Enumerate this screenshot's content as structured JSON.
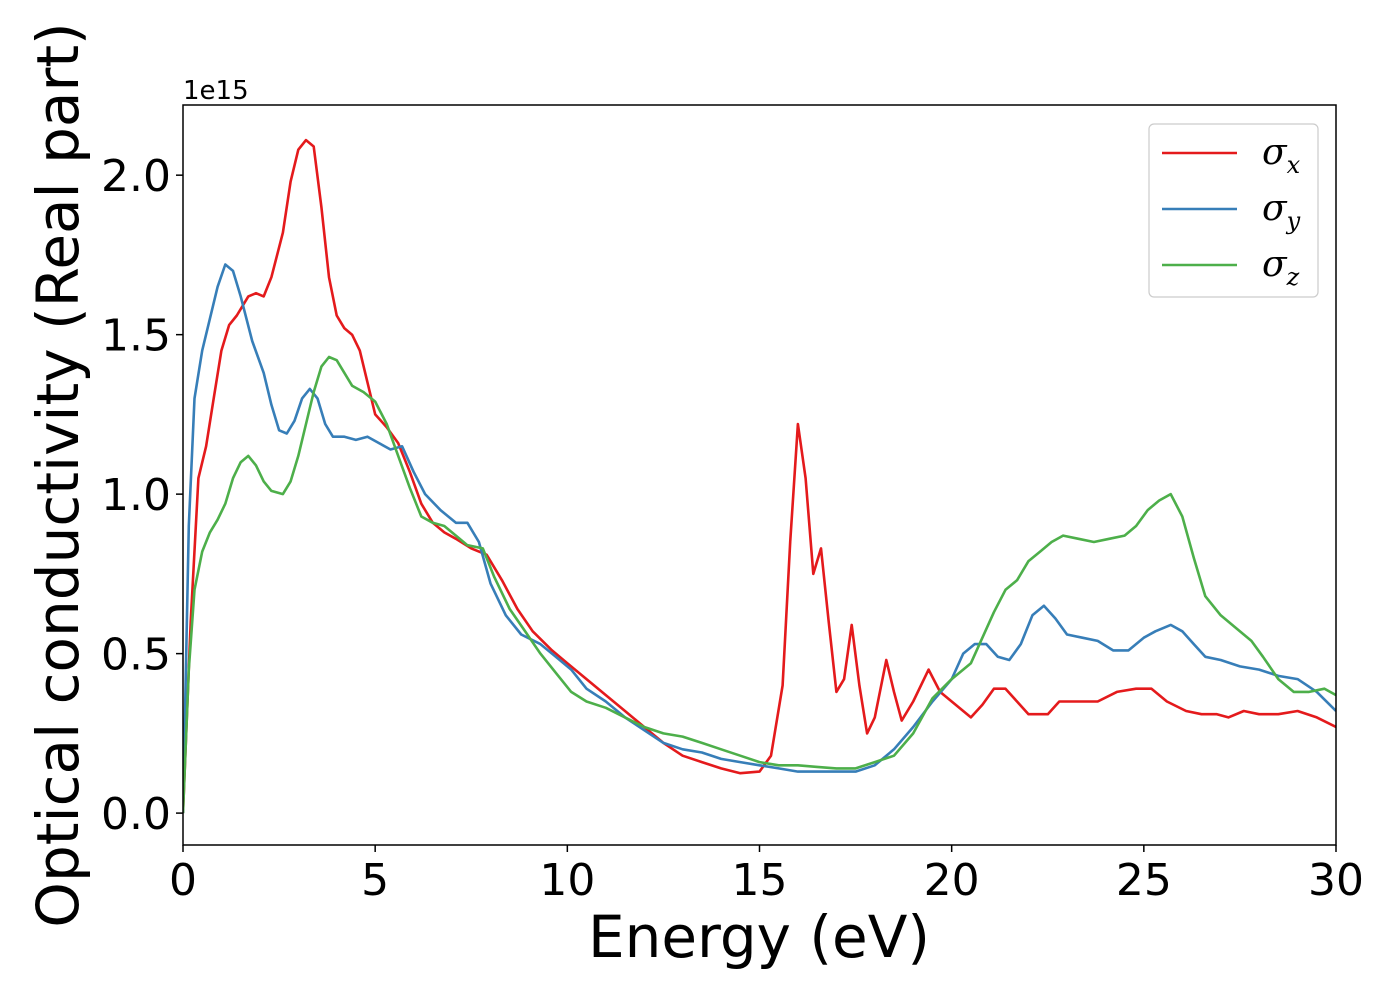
{
  "chart_data": {
    "type": "line",
    "xlabel": "Energy (eV)",
    "ylabel": "Optical conductivity (Real part)",
    "y_offset_text": "1e15",
    "xlim": [
      0,
      30
    ],
    "ylim": [
      -0.1,
      2.22
    ],
    "x_ticks": [
      0,
      5,
      10,
      15,
      20,
      25,
      30
    ],
    "y_ticks": [
      0.0,
      0.5,
      1.0,
      1.5,
      2.0
    ],
    "x_tick_labels": [
      "0",
      "5",
      "10",
      "15",
      "20",
      "25",
      "30"
    ],
    "y_tick_labels": [
      "0.0",
      "0.5",
      "1.0",
      "1.5",
      "2.0"
    ],
    "grid": false,
    "legend_position": "top-right",
    "series": [
      {
        "name": "σx",
        "symbol": "σ",
        "subscript": "x",
        "color": "#e41a1c",
        "points": [
          [
            0,
            0
          ],
          [
            0.2,
            0.6
          ],
          [
            0.4,
            1.05
          ],
          [
            0.6,
            1.15
          ],
          [
            0.8,
            1.3
          ],
          [
            1.0,
            1.45
          ],
          [
            1.2,
            1.53
          ],
          [
            1.4,
            1.56
          ],
          [
            1.7,
            1.62
          ],
          [
            1.9,
            1.63
          ],
          [
            2.1,
            1.62
          ],
          [
            2.3,
            1.68
          ],
          [
            2.6,
            1.82
          ],
          [
            2.8,
            1.98
          ],
          [
            3.0,
            2.08
          ],
          [
            3.2,
            2.11
          ],
          [
            3.4,
            2.09
          ],
          [
            3.6,
            1.9
          ],
          [
            3.8,
            1.68
          ],
          [
            4.0,
            1.56
          ],
          [
            4.2,
            1.52
          ],
          [
            4.4,
            1.5
          ],
          [
            4.6,
            1.45
          ],
          [
            4.8,
            1.35
          ],
          [
            5.0,
            1.25
          ],
          [
            5.3,
            1.21
          ],
          [
            5.6,
            1.16
          ],
          [
            5.9,
            1.07
          ],
          [
            6.2,
            0.97
          ],
          [
            6.5,
            0.91
          ],
          [
            6.8,
            0.88
          ],
          [
            7.1,
            0.86
          ],
          [
            7.5,
            0.83
          ],
          [
            7.9,
            0.81
          ],
          [
            8.3,
            0.73
          ],
          [
            8.7,
            0.64
          ],
          [
            9.1,
            0.57
          ],
          [
            9.6,
            0.51
          ],
          [
            10.0,
            0.47
          ],
          [
            10.5,
            0.42
          ],
          [
            11.0,
            0.37
          ],
          [
            11.5,
            0.32
          ],
          [
            12.0,
            0.27
          ],
          [
            12.5,
            0.22
          ],
          [
            13.0,
            0.18
          ],
          [
            13.5,
            0.16
          ],
          [
            14.0,
            0.14
          ],
          [
            14.5,
            0.125
          ],
          [
            15.0,
            0.13
          ],
          [
            15.3,
            0.18
          ],
          [
            15.6,
            0.4
          ],
          [
            15.8,
            0.85
          ],
          [
            16.0,
            1.22
          ],
          [
            16.2,
            1.05
          ],
          [
            16.4,
            0.75
          ],
          [
            16.6,
            0.83
          ],
          [
            16.8,
            0.6
          ],
          [
            17.0,
            0.38
          ],
          [
            17.2,
            0.42
          ],
          [
            17.4,
            0.59
          ],
          [
            17.6,
            0.4
          ],
          [
            17.8,
            0.25
          ],
          [
            18.0,
            0.3
          ],
          [
            18.3,
            0.48
          ],
          [
            18.5,
            0.38
          ],
          [
            18.7,
            0.29
          ],
          [
            19.0,
            0.35
          ],
          [
            19.4,
            0.45
          ],
          [
            19.7,
            0.38
          ],
          [
            20.0,
            0.35
          ],
          [
            20.3,
            0.32
          ],
          [
            20.5,
            0.3
          ],
          [
            20.8,
            0.34
          ],
          [
            21.1,
            0.39
          ],
          [
            21.4,
            0.39
          ],
          [
            21.7,
            0.35
          ],
          [
            22.0,
            0.31
          ],
          [
            22.5,
            0.31
          ],
          [
            22.8,
            0.35
          ],
          [
            23.3,
            0.35
          ],
          [
            23.8,
            0.35
          ],
          [
            24.3,
            0.38
          ],
          [
            24.8,
            0.39
          ],
          [
            25.2,
            0.39
          ],
          [
            25.6,
            0.35
          ],
          [
            26.1,
            0.32
          ],
          [
            26.5,
            0.31
          ],
          [
            26.9,
            0.31
          ],
          [
            27.2,
            0.3
          ],
          [
            27.6,
            0.32
          ],
          [
            28.0,
            0.31
          ],
          [
            28.5,
            0.31
          ],
          [
            29.0,
            0.32
          ],
          [
            29.5,
            0.3
          ],
          [
            30.0,
            0.27
          ]
        ]
      },
      {
        "name": "σy",
        "symbol": "σ",
        "subscript": "y",
        "color": "#377eb8",
        "points": [
          [
            0,
            0
          ],
          [
            0.15,
            0.9
          ],
          [
            0.3,
            1.3
          ],
          [
            0.5,
            1.45
          ],
          [
            0.7,
            1.55
          ],
          [
            0.9,
            1.65
          ],
          [
            1.1,
            1.72
          ],
          [
            1.3,
            1.7
          ],
          [
            1.5,
            1.62
          ],
          [
            1.8,
            1.48
          ],
          [
            2.1,
            1.38
          ],
          [
            2.3,
            1.28
          ],
          [
            2.5,
            1.2
          ],
          [
            2.7,
            1.19
          ],
          [
            2.9,
            1.23
          ],
          [
            3.1,
            1.3
          ],
          [
            3.3,
            1.33
          ],
          [
            3.5,
            1.3
          ],
          [
            3.7,
            1.22
          ],
          [
            3.9,
            1.18
          ],
          [
            4.2,
            1.18
          ],
          [
            4.5,
            1.17
          ],
          [
            4.8,
            1.18
          ],
          [
            5.1,
            1.16
          ],
          [
            5.4,
            1.14
          ],
          [
            5.7,
            1.15
          ],
          [
            6.0,
            1.07
          ],
          [
            6.3,
            1.0
          ],
          [
            6.7,
            0.95
          ],
          [
            7.1,
            0.91
          ],
          [
            7.4,
            0.91
          ],
          [
            7.7,
            0.85
          ],
          [
            8.0,
            0.72
          ],
          [
            8.4,
            0.62
          ],
          [
            8.8,
            0.56
          ],
          [
            9.3,
            0.53
          ],
          [
            9.7,
            0.49
          ],
          [
            10.1,
            0.45
          ],
          [
            10.5,
            0.39
          ],
          [
            11.0,
            0.35
          ],
          [
            11.5,
            0.3
          ],
          [
            12.0,
            0.26
          ],
          [
            12.5,
            0.22
          ],
          [
            13.0,
            0.2
          ],
          [
            13.5,
            0.19
          ],
          [
            14.0,
            0.17
          ],
          [
            14.5,
            0.16
          ],
          [
            15.0,
            0.15
          ],
          [
            15.5,
            0.14
          ],
          [
            16.0,
            0.13
          ],
          [
            16.5,
            0.13
          ],
          [
            17.0,
            0.13
          ],
          [
            17.5,
            0.13
          ],
          [
            18.0,
            0.15
          ],
          [
            18.5,
            0.2
          ],
          [
            19.0,
            0.27
          ],
          [
            19.5,
            0.35
          ],
          [
            20.0,
            0.42
          ],
          [
            20.3,
            0.5
          ],
          [
            20.6,
            0.53
          ],
          [
            20.9,
            0.53
          ],
          [
            21.2,
            0.49
          ],
          [
            21.5,
            0.48
          ],
          [
            21.8,
            0.53
          ],
          [
            22.1,
            0.62
          ],
          [
            22.4,
            0.65
          ],
          [
            22.7,
            0.61
          ],
          [
            23.0,
            0.56
          ],
          [
            23.4,
            0.55
          ],
          [
            23.8,
            0.54
          ],
          [
            24.2,
            0.51
          ],
          [
            24.6,
            0.51
          ],
          [
            25.0,
            0.55
          ],
          [
            25.3,
            0.57
          ],
          [
            25.7,
            0.59
          ],
          [
            26.0,
            0.57
          ],
          [
            26.3,
            0.53
          ],
          [
            26.6,
            0.49
          ],
          [
            27.0,
            0.48
          ],
          [
            27.5,
            0.46
          ],
          [
            28.0,
            0.45
          ],
          [
            28.5,
            0.43
          ],
          [
            29.0,
            0.42
          ],
          [
            29.5,
            0.38
          ],
          [
            30.0,
            0.32
          ]
        ]
      },
      {
        "name": "σz",
        "symbol": "σ",
        "subscript": "z",
        "color": "#4daf4a",
        "points": [
          [
            0,
            0
          ],
          [
            0.15,
            0.45
          ],
          [
            0.3,
            0.7
          ],
          [
            0.5,
            0.82
          ],
          [
            0.7,
            0.88
          ],
          [
            0.9,
            0.92
          ],
          [
            1.1,
            0.97
          ],
          [
            1.3,
            1.05
          ],
          [
            1.5,
            1.1
          ],
          [
            1.7,
            1.12
          ],
          [
            1.9,
            1.09
          ],
          [
            2.1,
            1.04
          ],
          [
            2.3,
            1.01
          ],
          [
            2.6,
            1.0
          ],
          [
            2.8,
            1.04
          ],
          [
            3.0,
            1.12
          ],
          [
            3.2,
            1.22
          ],
          [
            3.4,
            1.32
          ],
          [
            3.6,
            1.4
          ],
          [
            3.8,
            1.43
          ],
          [
            4.0,
            1.42
          ],
          [
            4.2,
            1.38
          ],
          [
            4.4,
            1.34
          ],
          [
            4.7,
            1.32
          ],
          [
            5.0,
            1.29
          ],
          [
            5.3,
            1.22
          ],
          [
            5.6,
            1.12
          ],
          [
            5.9,
            1.02
          ],
          [
            6.2,
            0.93
          ],
          [
            6.5,
            0.91
          ],
          [
            6.8,
            0.9
          ],
          [
            7.1,
            0.87
          ],
          [
            7.4,
            0.84
          ],
          [
            7.8,
            0.83
          ],
          [
            8.1,
            0.74
          ],
          [
            8.5,
            0.64
          ],
          [
            8.9,
            0.57
          ],
          [
            9.3,
            0.5
          ],
          [
            9.7,
            0.44
          ],
          [
            10.1,
            0.38
          ],
          [
            10.5,
            0.35
          ],
          [
            11.0,
            0.33
          ],
          [
            11.5,
            0.3
          ],
          [
            12.0,
            0.27
          ],
          [
            12.5,
            0.25
          ],
          [
            13.0,
            0.24
          ],
          [
            13.5,
            0.22
          ],
          [
            14.0,
            0.2
          ],
          [
            14.5,
            0.18
          ],
          [
            15.0,
            0.16
          ],
          [
            15.5,
            0.15
          ],
          [
            16.0,
            0.15
          ],
          [
            16.5,
            0.145
          ],
          [
            17.0,
            0.14
          ],
          [
            17.5,
            0.14
          ],
          [
            18.0,
            0.16
          ],
          [
            18.5,
            0.18
          ],
          [
            19.0,
            0.25
          ],
          [
            19.5,
            0.36
          ],
          [
            20.0,
            0.42
          ],
          [
            20.5,
            0.47
          ],
          [
            20.8,
            0.55
          ],
          [
            21.1,
            0.63
          ],
          [
            21.4,
            0.7
          ],
          [
            21.7,
            0.73
          ],
          [
            22.0,
            0.79
          ],
          [
            22.3,
            0.82
          ],
          [
            22.6,
            0.85
          ],
          [
            22.9,
            0.87
          ],
          [
            23.3,
            0.86
          ],
          [
            23.7,
            0.85
          ],
          [
            24.1,
            0.86
          ],
          [
            24.5,
            0.87
          ],
          [
            24.8,
            0.9
          ],
          [
            25.1,
            0.95
          ],
          [
            25.4,
            0.98
          ],
          [
            25.7,
            1.0
          ],
          [
            26.0,
            0.93
          ],
          [
            26.3,
            0.8
          ],
          [
            26.6,
            0.68
          ],
          [
            27.0,
            0.62
          ],
          [
            27.4,
            0.58
          ],
          [
            27.8,
            0.54
          ],
          [
            28.1,
            0.49
          ],
          [
            28.5,
            0.42
          ],
          [
            28.9,
            0.38
          ],
          [
            29.3,
            0.38
          ],
          [
            29.7,
            0.39
          ],
          [
            30.0,
            0.37
          ]
        ]
      }
    ]
  }
}
